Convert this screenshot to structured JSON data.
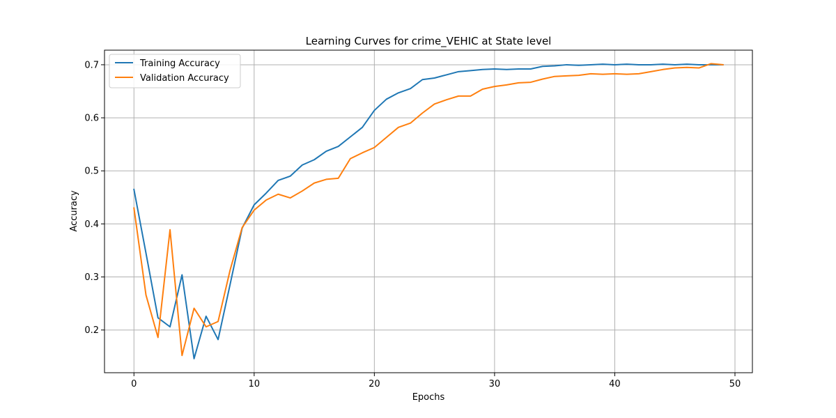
{
  "chart_data": {
    "type": "line",
    "title": "Learning Curves for crime_VEHIC at State level",
    "xlabel": "Epochs",
    "ylabel": "Accuracy",
    "xlim": [
      -2.45,
      51.45
    ],
    "ylim": [
      0.1195,
      0.7275
    ],
    "xticks": [
      0,
      10,
      20,
      30,
      40,
      50
    ],
    "yticks": [
      0.2,
      0.3,
      0.4,
      0.5,
      0.6,
      0.7
    ],
    "xtick_labels": [
      "0",
      "10",
      "20",
      "30",
      "40",
      "50"
    ],
    "ytick_labels": [
      "0.2",
      "0.3",
      "0.4",
      "0.5",
      "0.6",
      "0.7"
    ],
    "grid": true,
    "legend_position": "upper-left",
    "x": [
      0,
      1,
      2,
      3,
      4,
      5,
      6,
      7,
      8,
      9,
      10,
      11,
      12,
      13,
      14,
      15,
      16,
      17,
      18,
      19,
      20,
      21,
      22,
      23,
      24,
      25,
      26,
      27,
      28,
      29,
      30,
      31,
      32,
      33,
      34,
      35,
      36,
      37,
      38,
      39,
      40,
      41,
      42,
      43,
      44,
      45,
      46,
      47,
      48,
      49
    ],
    "series": [
      {
        "name": "Training Accuracy",
        "color": "#1f77b4",
        "values": [
          0.465,
          0.345,
          0.223,
          0.206,
          0.304,
          0.146,
          0.226,
          0.182,
          0.286,
          0.392,
          0.436,
          0.458,
          0.482,
          0.49,
          0.511,
          0.521,
          0.537,
          0.546,
          0.564,
          0.582,
          0.614,
          0.635,
          0.647,
          0.655,
          0.672,
          0.675,
          0.681,
          0.687,
          0.689,
          0.691,
          0.692,
          0.691,
          0.692,
          0.692,
          0.697,
          0.698,
          0.7,
          0.699,
          0.7,
          0.701,
          0.7,
          0.701,
          0.7,
          0.7,
          0.701,
          0.7,
          0.701,
          0.7,
          0.7,
          0.7
        ]
      },
      {
        "name": "Validation Accuracy",
        "color": "#ff7f0e",
        "values": [
          0.43,
          0.266,
          0.186,
          0.389,
          0.152,
          0.241,
          0.206,
          0.216,
          0.313,
          0.393,
          0.426,
          0.445,
          0.456,
          0.449,
          0.462,
          0.477,
          0.484,
          0.486,
          0.523,
          0.534,
          0.544,
          0.563,
          0.582,
          0.59,
          0.609,
          0.626,
          0.634,
          0.641,
          0.641,
          0.654,
          0.659,
          0.662,
          0.666,
          0.667,
          0.673,
          0.678,
          0.679,
          0.68,
          0.683,
          0.682,
          0.683,
          0.682,
          0.683,
          0.687,
          0.691,
          0.694,
          0.695,
          0.694,
          0.702,
          0.7
        ]
      }
    ]
  }
}
